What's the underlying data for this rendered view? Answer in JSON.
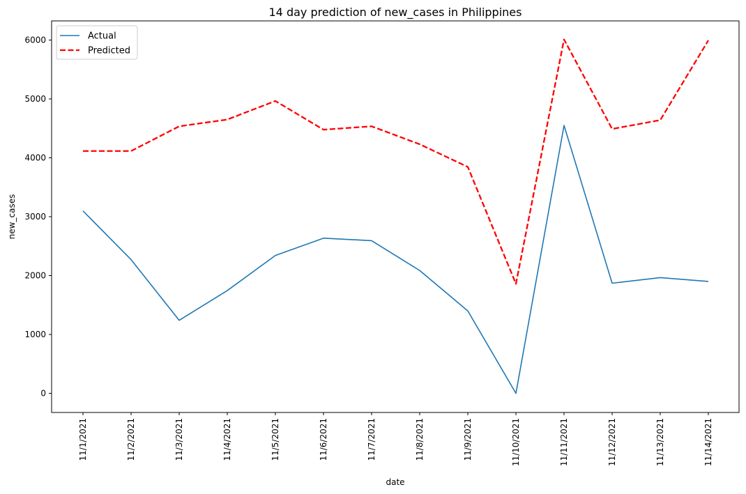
{
  "chart_data": {
    "type": "line",
    "title": "14 day prediction of new_cases in Philippines",
    "xlabel": "date",
    "ylabel": "new_cases",
    "categories": [
      "11/1/2021",
      "11/2/2021",
      "11/3/2021",
      "11/4/2021",
      "11/5/2021",
      "11/6/2021",
      "11/7/2021",
      "11/8/2021",
      "11/9/2021",
      "11/10/2021",
      "11/11/2021",
      "11/12/2021",
      "11/13/2021",
      "11/14/2021"
    ],
    "series": [
      {
        "name": "Actual",
        "color": "#1f77b4",
        "style": "solid",
        "values": [
          3098,
          2271,
          1240,
          1745,
          2342,
          2635,
          2593,
          2086,
          1400,
          0,
          4550,
          1870,
          1965,
          1900
        ]
      },
      {
        "name": "Predicted",
        "color": "#ff0000",
        "style": "dashed",
        "values": [
          4115,
          4115,
          4535,
          4650,
          4965,
          4478,
          4535,
          4230,
          3845,
          1860,
          6010,
          4490,
          4640,
          5995
        ]
      }
    ],
    "ylim": [
      -325,
      6325
    ],
    "yticks": [
      0,
      1000,
      2000,
      3000,
      4000,
      5000,
      6000
    ],
    "grid": false,
    "legend": "top-left"
  }
}
